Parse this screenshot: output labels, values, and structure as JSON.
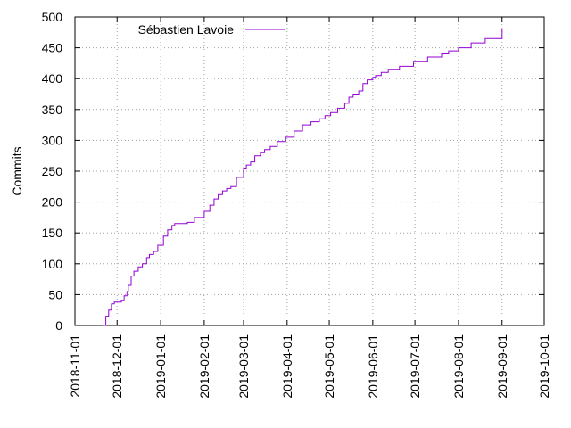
{
  "chart_data": {
    "type": "line",
    "title": "",
    "xlabel": "",
    "ylabel": "Commits",
    "x_axis_type": "date",
    "xlim": [
      "2018-11-01",
      "2019-10-01"
    ],
    "ylim": [
      0,
      500
    ],
    "x_ticks": [
      "2018-11-01",
      "2018-12-01",
      "2019-01-01",
      "2019-02-01",
      "2019-03-01",
      "2019-04-01",
      "2019-05-01",
      "2019-06-01",
      "2019-07-01",
      "2019-08-01",
      "2019-09-01",
      "2019-10-01"
    ],
    "y_ticks": [
      0,
      50,
      100,
      150,
      200,
      250,
      300,
      350,
      400,
      450,
      500
    ],
    "grid": true,
    "legend_position": "top-left",
    "series": [
      {
        "name": "Sébastien Lavoie",
        "color": "#9400d3",
        "x": [
          "2018-11-21",
          "2018-11-23",
          "2018-11-25",
          "2018-11-27",
          "2018-11-29",
          "2018-12-04",
          "2018-12-06",
          "2018-12-08",
          "2018-12-09",
          "2018-12-11",
          "2018-12-13",
          "2018-12-16",
          "2018-12-19",
          "2018-12-22",
          "2018-12-24",
          "2018-12-27",
          "2018-12-30",
          "2019-01-03",
          "2019-01-06",
          "2019-01-09",
          "2019-01-11",
          "2019-01-13",
          "2019-01-16",
          "2019-01-20",
          "2019-01-25",
          "2019-02-01",
          "2019-02-05",
          "2019-02-08",
          "2019-02-11",
          "2019-02-14",
          "2019-02-17",
          "2019-02-20",
          "2019-02-24",
          "2019-03-01",
          "2019-03-03",
          "2019-03-06",
          "2019-03-09",
          "2019-03-13",
          "2019-03-16",
          "2019-03-20",
          "2019-03-25",
          "2019-03-31",
          "2019-04-06",
          "2019-04-12",
          "2019-04-18",
          "2019-04-24",
          "2019-04-28",
          "2019-05-02",
          "2019-05-07",
          "2019-05-12",
          "2019-05-15",
          "2019-05-18",
          "2019-05-22",
          "2019-05-25",
          "2019-05-28",
          "2019-06-01",
          "2019-06-03",
          "2019-06-07",
          "2019-06-12",
          "2019-06-20",
          "2019-06-30",
          "2019-07-10",
          "2019-07-20",
          "2019-07-25",
          "2019-08-01",
          "2019-08-10",
          "2019-08-20",
          "2019-09-01"
        ],
        "y": [
          0,
          15,
          25,
          35,
          38,
          40,
          48,
          55,
          65,
          80,
          88,
          95,
          100,
          110,
          115,
          120,
          130,
          145,
          155,
          162,
          165,
          165,
          165,
          167,
          175,
          185,
          195,
          205,
          212,
          218,
          222,
          225,
          240,
          255,
          260,
          265,
          275,
          280,
          285,
          290,
          298,
          305,
          315,
          325,
          330,
          335,
          340,
          345,
          352,
          360,
          370,
          375,
          380,
          392,
          398,
          402,
          405,
          410,
          415,
          420,
          428,
          435,
          440,
          445,
          450,
          458,
          465,
          480
        ]
      }
    ]
  }
}
